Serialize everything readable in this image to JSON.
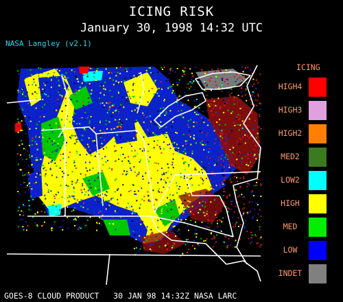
{
  "header": {
    "title": "ICING RISK",
    "subtitle": "January 30, 1998 14:32 UTC",
    "credit": "NASA Langley (v2.1)"
  },
  "footer": {
    "text": "GOES-8 CLOUD PRODUCT   30 JAN 98 14:32Z NASA LARC"
  },
  "legend": {
    "title": "ICING",
    "items": [
      {
        "label": "HIGH4",
        "color": "#ff0000"
      },
      {
        "label": "HIGH3",
        "color": "#e0a0e0"
      },
      {
        "label": "HIGH2",
        "color": "#ff7f00"
      },
      {
        "label": "MED2",
        "color": "#3c7a22"
      },
      {
        "label": "LOW2",
        "color": "#00ffff"
      },
      {
        "label": "HIGH",
        "color": "#ffff00"
      },
      {
        "label": "MED",
        "color": "#00ee00"
      },
      {
        "label": "LOW",
        "color": "#0000ff"
      },
      {
        "label": "INDET",
        "color": "#808080"
      }
    ]
  }
}
